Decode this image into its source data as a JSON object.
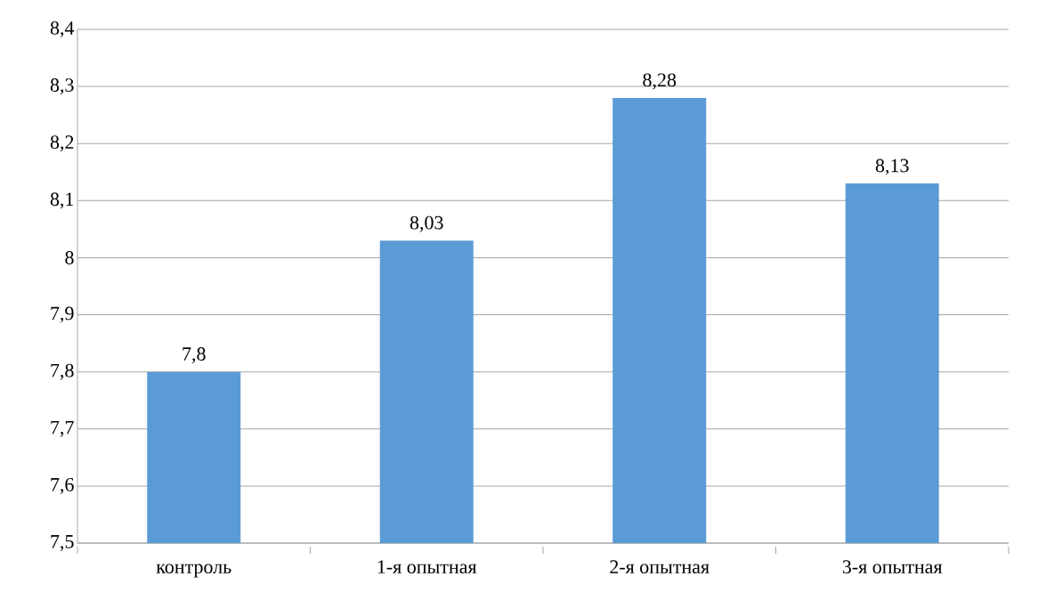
{
  "chart_data": {
    "type": "bar",
    "categories": [
      "контроль",
      "1-я опытная",
      "2-я опытная",
      "3-я опытная"
    ],
    "values": [
      7.8,
      8.03,
      8.28,
      8.13
    ],
    "value_labels": [
      "7,8",
      "8,03",
      "8,28",
      "8,13"
    ],
    "color": "#5b9bd5",
    "ylim": [
      7.5,
      8.4
    ],
    "yticks": [
      {
        "value": 7.5,
        "label": "7,5"
      },
      {
        "value": 7.6,
        "label": "7,6"
      },
      {
        "value": 7.7,
        "label": "7,7"
      },
      {
        "value": 7.8,
        "label": "7,8"
      },
      {
        "value": 7.9,
        "label": "7,9"
      },
      8,
      {
        "value": 8.1,
        "label": "8,1"
      },
      {
        "value": 8.2,
        "label": "8,2"
      },
      {
        "value": 8.3,
        "label": "8,3"
      },
      {
        "value": 8.4,
        "label": "8,4"
      }
    ],
    "grid": "y"
  }
}
